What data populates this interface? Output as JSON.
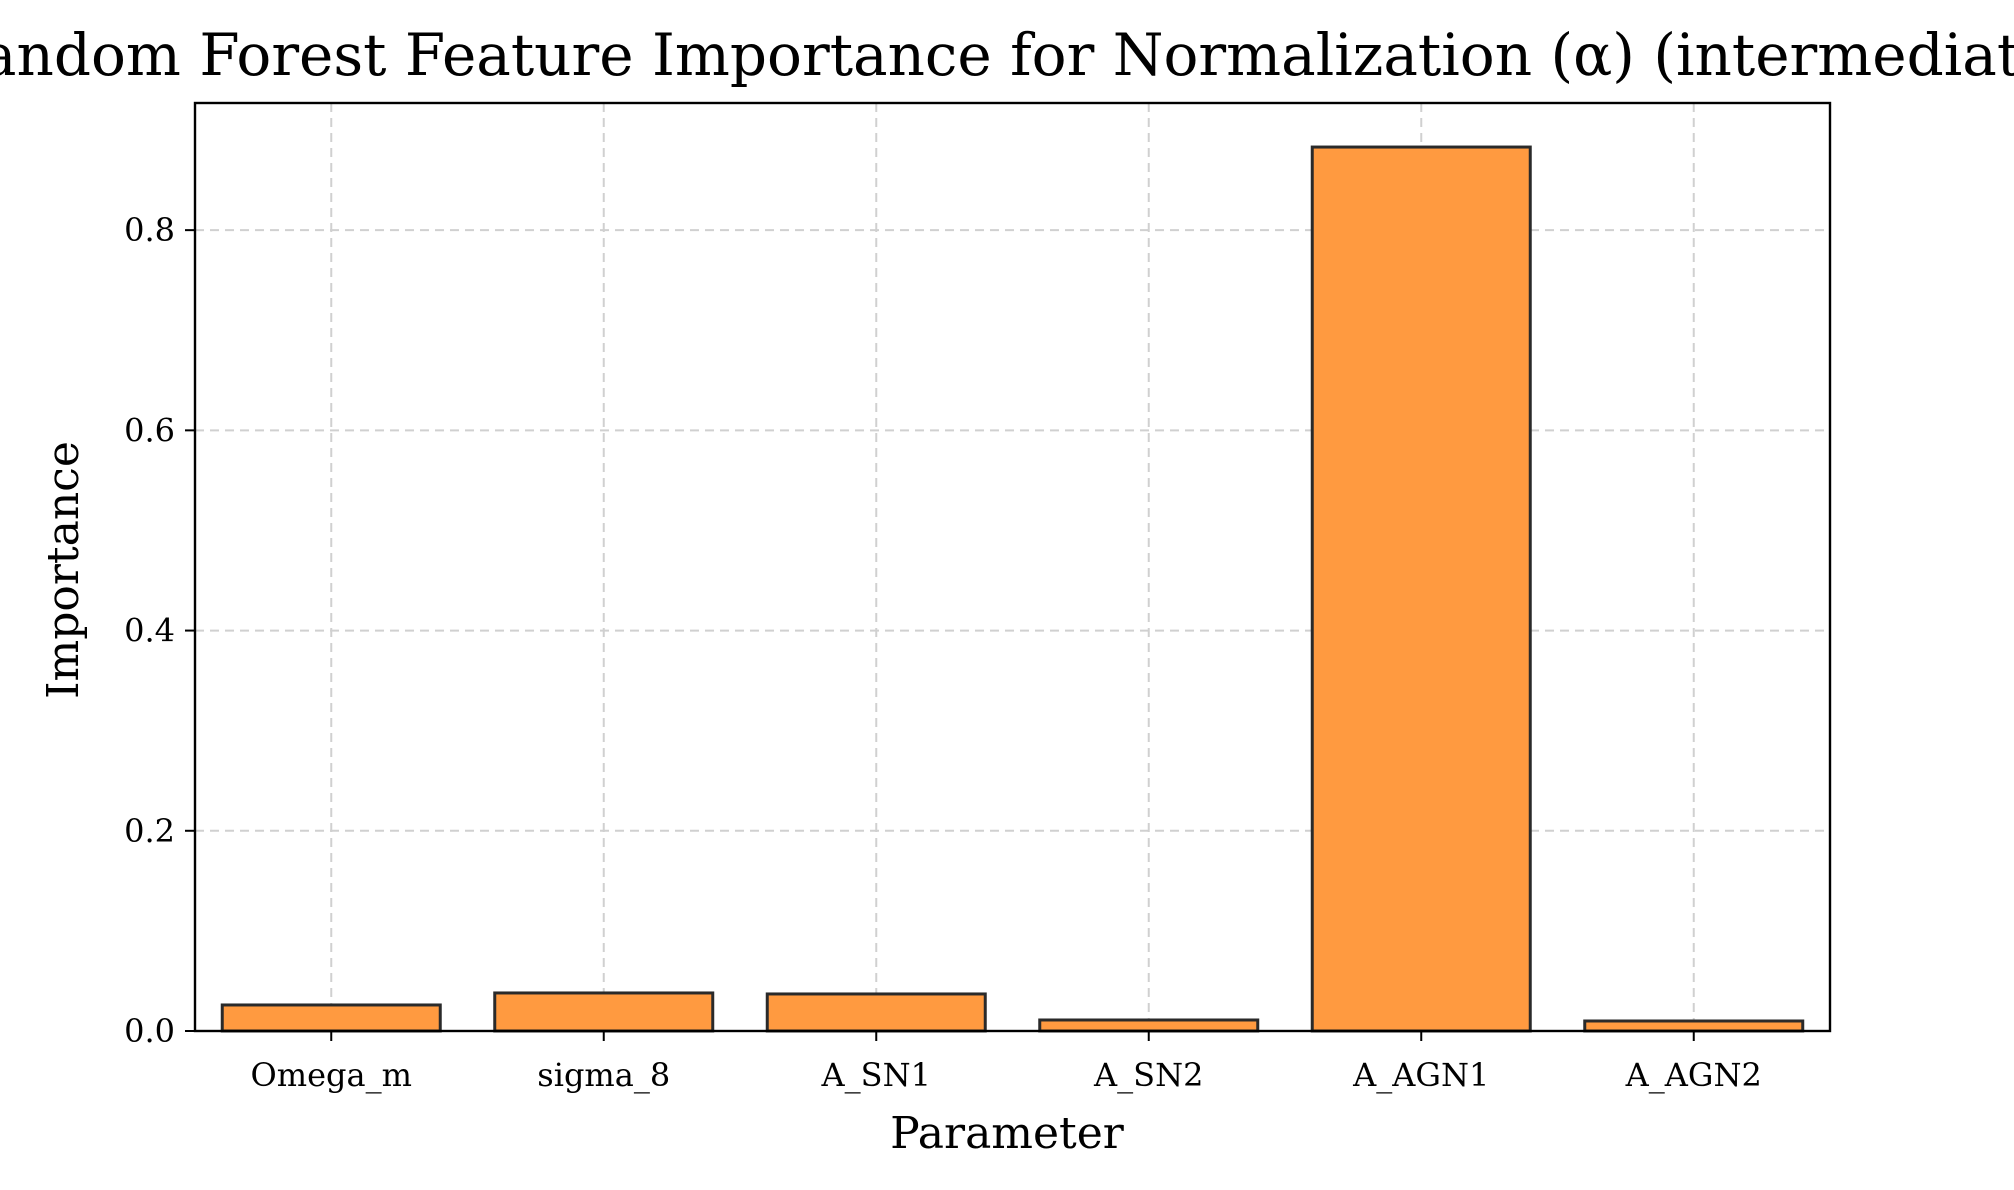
{
  "chart_data": {
    "type": "bar",
    "title": "Random Forest Feature Importance for Normalization (α) (intermediate)",
    "xlabel": "Parameter",
    "ylabel": "Importance",
    "categories": [
      "Omega_m",
      "sigma_8",
      "A_SN1",
      "A_SN2",
      "A_AGN1",
      "A_AGN2"
    ],
    "values": [
      0.026,
      0.038,
      0.037,
      0.011,
      0.883,
      0.01
    ],
    "ylim": [
      0,
      0.927
    ],
    "yticks": [
      0.0,
      0.2,
      0.4,
      0.6,
      0.8
    ],
    "ytick_labels": [
      "0.0",
      "0.2",
      "0.4",
      "0.6",
      "0.8"
    ],
    "grid": true,
    "bar_color": "#ff9a40",
    "edge_color": "#2a2a2a",
    "grid_color": "#d0d0d0"
  }
}
